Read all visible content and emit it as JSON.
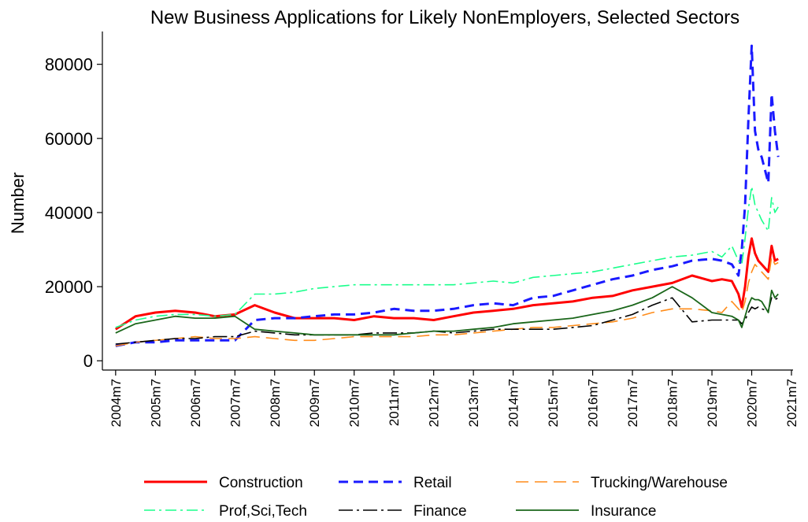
{
  "chart_data": {
    "type": "line",
    "title": "New Business Applications for Likely NonEmployers, Selected Sectors",
    "ylabel": "Number",
    "x": [
      "2004m7",
      "2005m1",
      "2005m7",
      "2006m1",
      "2006m7",
      "2007m1",
      "2007m7",
      "2008m1",
      "2008m7",
      "2009m1",
      "2009m7",
      "2010m1",
      "2010m7",
      "2011m1",
      "2011m7",
      "2012m1",
      "2012m7",
      "2013m1",
      "2013m7",
      "2014m1",
      "2014m7",
      "2015m1",
      "2015m7",
      "2016m1",
      "2016m7",
      "2017m1",
      "2017m7",
      "2018m1",
      "2018m7",
      "2019m1",
      "2019m7",
      "2019m10",
      "2020m1",
      "2020m3",
      "2020m4",
      "2020m5",
      "2020m6",
      "2020m7",
      "2020m8",
      "2020m9",
      "2020m10",
      "2020m12",
      "2021m1",
      "2021m2",
      "2021m3"
    ],
    "series": [
      {
        "name": "Construction",
        "color": "#ff0000",
        "dash": "solid",
        "width": 3,
        "values": [
          8500,
          12000,
          13000,
          13500,
          13000,
          12000,
          12500,
          15000,
          13000,
          11500,
          11500,
          11500,
          11000,
          12000,
          11500,
          11500,
          11000,
          12000,
          13000,
          13500,
          14000,
          15000,
          15500,
          16000,
          17000,
          17500,
          19000,
          20000,
          21000,
          23000,
          21500,
          22000,
          21500,
          18000,
          14500,
          20000,
          28000,
          33000,
          29000,
          27000,
          26000,
          24000,
          31000,
          27000,
          27500
        ]
      },
      {
        "name": "Retail",
        "color": "#1a1aff",
        "dash": "dash",
        "width": 3,
        "values": [
          4000,
          5000,
          5000,
          5500,
          5500,
          5500,
          5500,
          11000,
          11500,
          11500,
          12000,
          12500,
          12500,
          13000,
          14000,
          13500,
          13500,
          14000,
          15000,
          15500,
          15000,
          17000,
          17500,
          19000,
          20500,
          22000,
          23000,
          24500,
          25500,
          27000,
          27500,
          27000,
          26000,
          23000,
          30000,
          42000,
          65000,
          85000,
          62000,
          57000,
          55000,
          48000,
          72000,
          62000,
          55000
        ]
      },
      {
        "name": "Trucking/Warehouse",
        "color": "#ff8c1a",
        "dash": "longdash",
        "width": 1.6,
        "values": [
          4000,
          5000,
          5500,
          6000,
          6500,
          6000,
          6000,
          6500,
          6000,
          5500,
          5500,
          6000,
          6500,
          6500,
          6500,
          6500,
          7000,
          7000,
          7500,
          8000,
          8500,
          9000,
          9000,
          9500,
          10000,
          10500,
          11500,
          13000,
          14000,
          14000,
          13500,
          13000,
          16000,
          14000,
          13000,
          16000,
          21000,
          24000,
          26000,
          25000,
          24000,
          22000,
          28000,
          26000,
          26500
        ]
      },
      {
        "name": "Prof,Sci,Tech",
        "color": "#1aff8c",
        "dash": "dashdot",
        "width": 1.6,
        "values": [
          9000,
          11000,
          12000,
          12500,
          12500,
          12000,
          12500,
          18000,
          18000,
          18500,
          19500,
          20000,
          20500,
          20500,
          20500,
          20500,
          20500,
          20500,
          21000,
          21500,
          21000,
          22500,
          23000,
          23500,
          24000,
          25000,
          26000,
          27000,
          28000,
          28500,
          29500,
          28000,
          31000,
          27000,
          26000,
          33000,
          41000,
          47000,
          42000,
          40000,
          38000,
          35000,
          44000,
          40000,
          41500
        ]
      },
      {
        "name": "Finance",
        "color": "#000000",
        "dash": "longdashdot",
        "width": 1.6,
        "values": [
          4500,
          5000,
          5500,
          6000,
          6000,
          6500,
          6500,
          8000,
          7500,
          7000,
          7000,
          7000,
          7000,
          7500,
          7500,
          7500,
          8000,
          7500,
          8000,
          8500,
          8500,
          8500,
          8500,
          9000,
          9500,
          11000,
          12500,
          15000,
          17000,
          10500,
          11000,
          11000,
          11000,
          11000,
          10000,
          11000,
          13000,
          14500,
          14000,
          14500,
          14000,
          13500,
          17000,
          16500,
          17000
        ]
      },
      {
        "name": "Insurance",
        "color": "#1a661a",
        "dash": "solid",
        "width": 1.8,
        "values": [
          7500,
          10000,
          11000,
          12000,
          11500,
          11500,
          12000,
          8500,
          8000,
          7500,
          7000,
          7000,
          7000,
          7000,
          7000,
          7500,
          8000,
          8000,
          8500,
          9000,
          10000,
          10500,
          11000,
          11500,
          12500,
          13500,
          15000,
          17000,
          20000,
          17000,
          13000,
          12500,
          12000,
          11000,
          9000,
          12000,
          15000,
          17000,
          16500,
          16500,
          16000,
          13000,
          19000,
          17000,
          18000
        ]
      }
    ],
    "xlim": [
      "2004m3",
      "2021m7"
    ],
    "xticks": [
      "2004m7",
      "2005m7",
      "2006m7",
      "2007m7",
      "2008m7",
      "2009m7",
      "2010m7",
      "2011m7",
      "2012m7",
      "2013m7",
      "2014m7",
      "2015m7",
      "2016m7",
      "2017m7",
      "2018m7",
      "2019m7",
      "2020m7",
      "2021m7"
    ],
    "ylim": [
      -2500,
      88000
    ],
    "yticks": [
      0,
      20000,
      40000,
      60000,
      80000
    ],
    "grid": false,
    "legend": "bottom"
  }
}
